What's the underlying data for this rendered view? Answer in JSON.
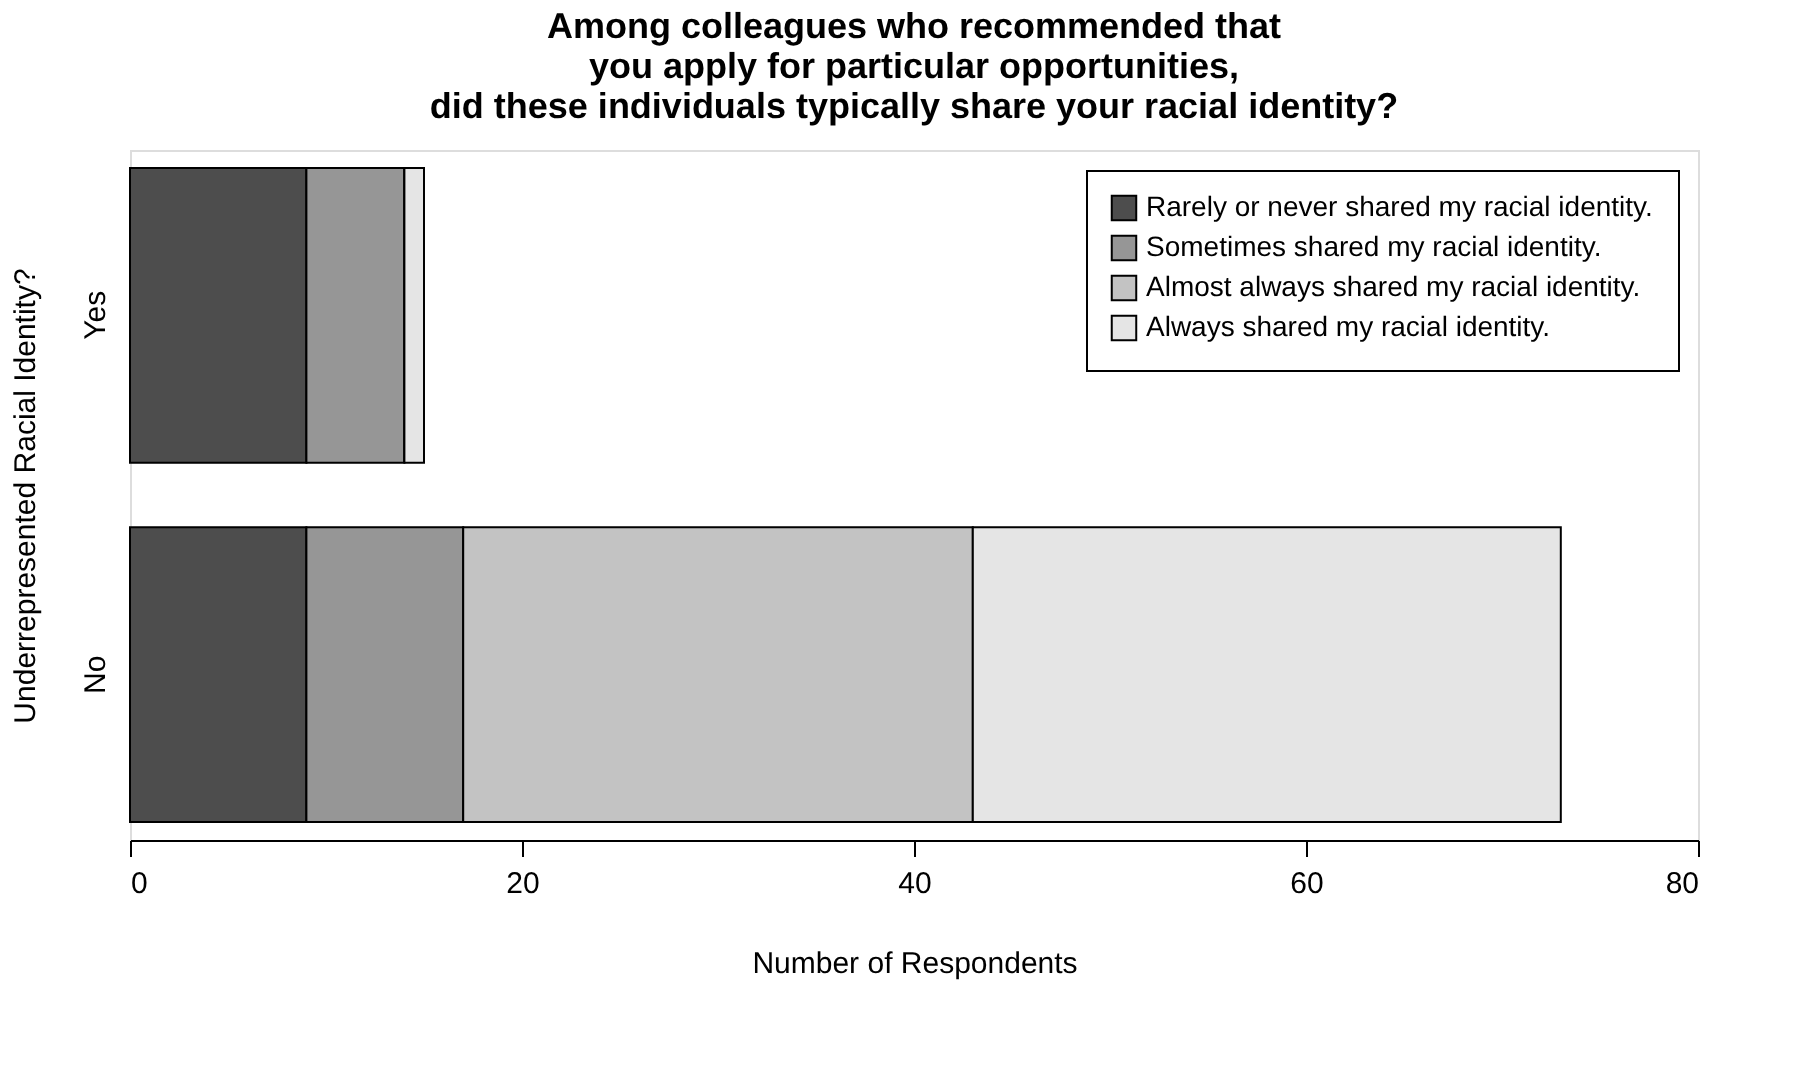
{
  "chart_data": {
    "type": "bar",
    "orientation": "horizontal",
    "stacked": true,
    "title": "Among colleagues who recommended that\nyou apply for particular opportunities,\ndid these individuals typically share your racial identity?",
    "xlabel": "Number of Respondents",
    "ylabel": "Underrepresented Racial Identity?",
    "categories": [
      "Yes",
      "No"
    ],
    "series": [
      {
        "name": "Rarely or never shared my racial identity.",
        "color": "#4d4d4d",
        "values": [
          9,
          9
        ]
      },
      {
        "name": "Sometimes shared my racial identity.",
        "color": "#969696",
        "values": [
          5,
          8
        ]
      },
      {
        "name": "Almost always shared my racial identity.",
        "color": "#c3c3c3",
        "values": [
          0,
          26
        ]
      },
      {
        "name": "Always shared my racial identity.",
        "color": "#e5e5e5",
        "values": [
          1,
          30
        ]
      }
    ],
    "xlim": [
      0,
      80
    ],
    "xticks": [
      0,
      20,
      40,
      60,
      80
    ],
    "grid": false,
    "legend": "top right"
  }
}
